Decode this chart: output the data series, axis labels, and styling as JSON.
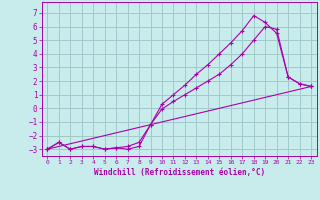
{
  "title": "",
  "xlabel": "Windchill (Refroidissement éolien,°C)",
  "ylabel": "",
  "bg_color": "#c8ecec",
  "grid_color": "#a0c8c8",
  "line_color": "#aa00aa",
  "xlim": [
    -0.5,
    23.5
  ],
  "ylim": [
    -3.5,
    7.8
  ],
  "yticks": [
    -3,
    -2,
    -1,
    0,
    1,
    2,
    3,
    4,
    5,
    6,
    7
  ],
  "xticks": [
    0,
    1,
    2,
    3,
    4,
    5,
    6,
    7,
    8,
    9,
    10,
    11,
    12,
    13,
    14,
    15,
    16,
    17,
    18,
    19,
    20,
    21,
    22,
    23
  ],
  "line1_x": [
    0,
    1,
    2,
    3,
    4,
    5,
    6,
    7,
    8,
    9,
    10,
    11,
    12,
    13,
    14,
    15,
    16,
    17,
    18,
    19,
    20,
    21,
    22,
    23
  ],
  "line1_y": [
    -3,
    -2.5,
    -3,
    -2.8,
    -2.8,
    -3,
    -2.9,
    -3,
    -2.8,
    -1.2,
    -0.05,
    0.5,
    1.0,
    1.5,
    2.0,
    2.5,
    3.2,
    4.0,
    5.0,
    6.0,
    5.8,
    2.3,
    1.8,
    1.6
  ],
  "line2_x": [
    0,
    1,
    2,
    3,
    4,
    5,
    6,
    7,
    8,
    9,
    10,
    11,
    12,
    13,
    14,
    15,
    16,
    17,
    18,
    19,
    20,
    21,
    22,
    23
  ],
  "line2_y": [
    -3,
    -2.5,
    -3,
    -2.8,
    -2.8,
    -3,
    -2.9,
    -2.8,
    -2.5,
    -1.2,
    0.3,
    1.0,
    1.7,
    2.5,
    3.2,
    4.0,
    4.8,
    5.7,
    6.8,
    6.3,
    5.5,
    2.3,
    1.8,
    1.6
  ],
  "line3_x": [
    0,
    23
  ],
  "line3_y": [
    -3.0,
    1.6
  ]
}
